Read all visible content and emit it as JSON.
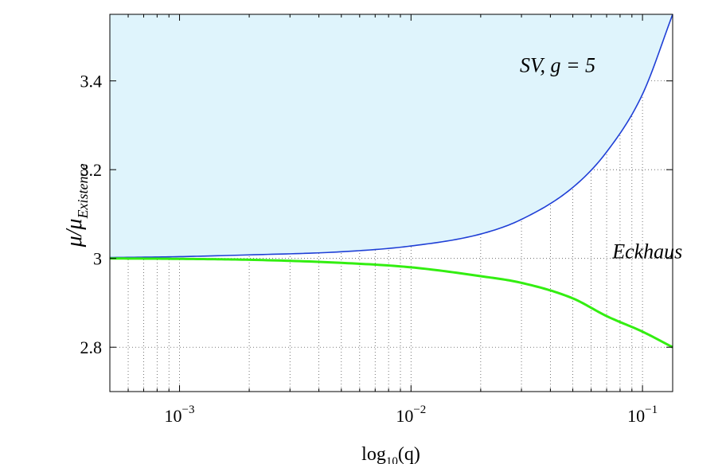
{
  "chart_data": {
    "type": "line",
    "title": "",
    "xlabel": {
      "base": "log",
      "sub": "10",
      "arg": "(q)"
    },
    "ylabel": {
      "main": "μ/μ",
      "sub": "Existence"
    },
    "x_scale": "log",
    "xlim": [
      0.0005,
      0.135
    ],
    "ylim": [
      2.7,
      3.55
    ],
    "grid": true,
    "x_ticks": [
      {
        "value": 0.001,
        "base": "10",
        "exp": "−3"
      },
      {
        "value": 0.01,
        "base": "10",
        "exp": "−2"
      },
      {
        "value": 0.1,
        "base": "10",
        "exp": "−1"
      }
    ],
    "y_ticks": [
      {
        "value": 2.8,
        "label": "2.8"
      },
      {
        "value": 3.0,
        "label": "3"
      },
      {
        "value": 3.2,
        "label": "3.2"
      },
      {
        "value": 3.4,
        "label": "3.4"
      }
    ],
    "series": [
      {
        "label": "SV, g = 5",
        "color": "#1f3fd6",
        "fill_above": "#dff4fc",
        "x": [
          0.0005,
          0.001,
          0.002,
          0.005,
          0.01,
          0.02,
          0.03,
          0.05,
          0.07,
          0.1,
          0.135
        ],
        "y": [
          3.002,
          3.004,
          3.008,
          3.015,
          3.028,
          3.055,
          3.088,
          3.16,
          3.24,
          3.37,
          3.55
        ]
      },
      {
        "label": "Eckhaus",
        "color": "#33ee11",
        "x": [
          0.0005,
          0.001,
          0.002,
          0.005,
          0.01,
          0.02,
          0.03,
          0.05,
          0.07,
          0.1,
          0.135
        ],
        "y": [
          3.0,
          2.999,
          2.997,
          2.99,
          2.98,
          2.96,
          2.945,
          2.91,
          2.87,
          2.835,
          2.8
        ]
      }
    ],
    "annotations": [
      {
        "text": "SV, g = 5",
        "x": 0.043,
        "y": 3.42
      },
      {
        "text": "Eckhaus",
        "x": 0.105,
        "y": 3.0
      }
    ]
  }
}
